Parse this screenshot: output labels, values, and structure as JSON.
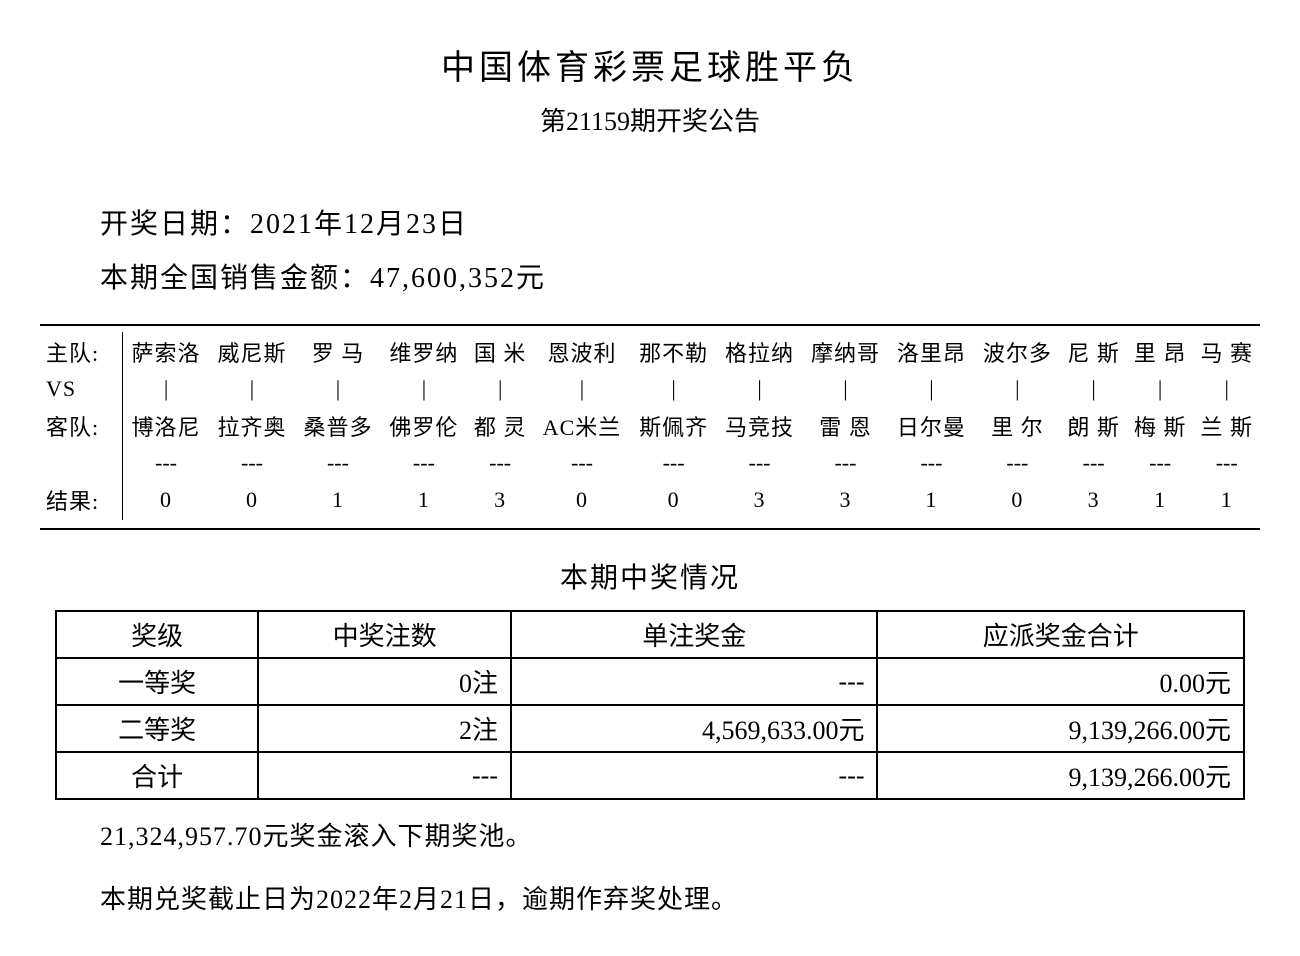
{
  "header": {
    "title": "中国体育彩票足球胜平负",
    "subtitle": "第21159期开奖公告"
  },
  "info": {
    "date_label": "开奖日期：",
    "date_value": "2021年12月23日",
    "sales_label": "本期全国销售金额：",
    "sales_value": "47,600,352元"
  },
  "matches": {
    "home_label": "主队:",
    "vs_label": "VS",
    "away_label": "客队:",
    "result_label": "结果:",
    "bar": "|",
    "dash": "---",
    "games": [
      {
        "home": "萨索洛",
        "away": "博洛尼",
        "result": "0"
      },
      {
        "home": "威尼斯",
        "away": "拉齐奥",
        "result": "0"
      },
      {
        "home": "罗 马",
        "away": "桑普多",
        "result": "1"
      },
      {
        "home": "维罗纳",
        "away": "佛罗伦",
        "result": "1"
      },
      {
        "home": "国 米",
        "away": "都 灵",
        "result": "3"
      },
      {
        "home": "恩波利",
        "away": "AC米兰",
        "result": "0"
      },
      {
        "home": "那不勒",
        "away": "斯佩齐",
        "result": "0"
      },
      {
        "home": "格拉纳",
        "away": "马竞技",
        "result": "3"
      },
      {
        "home": "摩纳哥",
        "away": "雷 恩",
        "result": "3"
      },
      {
        "home": "洛里昂",
        "away": "日尔曼",
        "result": "1"
      },
      {
        "home": "波尔多",
        "away": "里 尔",
        "result": "0"
      },
      {
        "home": "尼 斯",
        "away": "朗 斯",
        "result": "3"
      },
      {
        "home": "里 昂",
        "away": "梅 斯",
        "result": "1"
      },
      {
        "home": "马 赛",
        "away": "兰 斯",
        "result": "1"
      }
    ]
  },
  "prizes": {
    "title": "本期中奖情况",
    "columns": [
      "奖级",
      "中奖注数",
      "单注奖金",
      "应派奖金合计"
    ],
    "rows": [
      {
        "level": "一等奖",
        "count": "0注",
        "unit": "---",
        "total": "0.00元"
      },
      {
        "level": "二等奖",
        "count": "2注",
        "unit": "4,569,633.00元",
        "total": "9,139,266.00元"
      },
      {
        "level": "合计",
        "count": "---",
        "unit": "---",
        "total": "9,139,266.00元"
      }
    ]
  },
  "footer": {
    "rollover": "21,324,957.70元奖金滚入下期奖池。",
    "deadline": "本期兑奖截止日为2022年2月21日，逾期作弃奖处理。"
  },
  "style": {
    "background_color": "#ffffff",
    "text_color": "#000000",
    "border_color": "#000000",
    "font_family": "SimSun",
    "title_fontsize": 34,
    "body_fontsize": 26,
    "table_fontsize": 26,
    "matches_fontsize": 22
  }
}
